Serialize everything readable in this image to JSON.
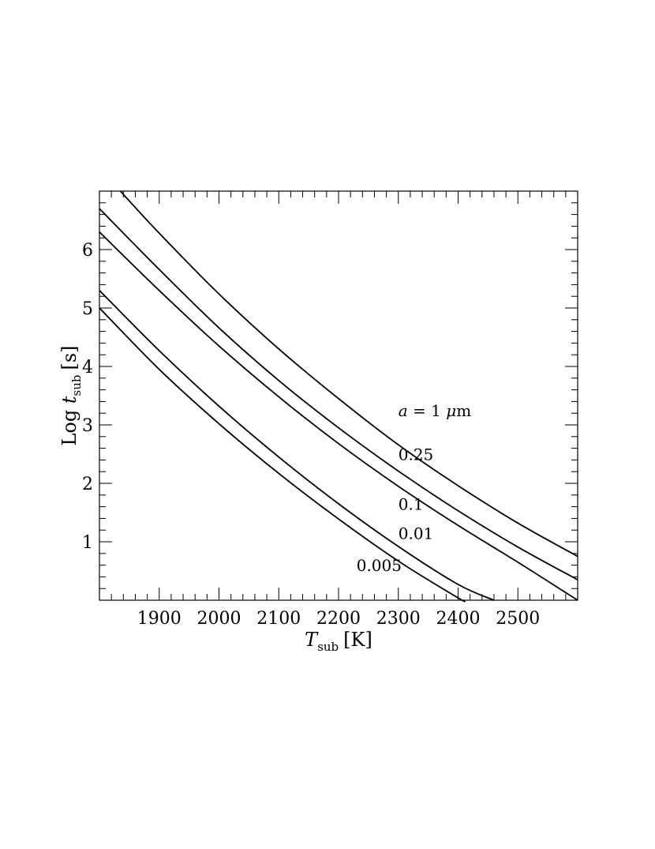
{
  "chart_data": {
    "type": "line",
    "xlabel": {
      "main": "T",
      "sub": "sub",
      "unit": "[K]"
    },
    "ylabel": {
      "prefix": "Log ",
      "main": "t",
      "sub": "sub",
      "unit": "[s]"
    },
    "xlim": [
      1800,
      2600
    ],
    "ylim": [
      0,
      7
    ],
    "x_ticks": [
      1900,
      2000,
      2100,
      2200,
      2300,
      2400,
      2500
    ],
    "y_ticks": [
      1,
      2,
      3,
      4,
      5,
      6
    ],
    "grid": false,
    "series": [
      {
        "name": "a = 1 μm",
        "label_parts": {
          "var": "a",
          "op": " = 1 ",
          "mu": "μ",
          "unit": "m"
        },
        "label_at": [
          2300,
          3.15
        ],
        "x": [
          1835,
          1900,
          2000,
          2100,
          2200,
          2300,
          2400,
          2500,
          2600
        ],
        "y": [
          7.0,
          6.28,
          5.24,
          4.3,
          3.45,
          2.66,
          1.96,
          1.32,
          0.75
        ]
      },
      {
        "name": "0.25",
        "label_at": [
          2300,
          2.4
        ],
        "x": [
          1800,
          1900,
          2000,
          2100,
          2200,
          2300,
          2400,
          2500,
          2600
        ],
        "y": [
          6.7,
          5.66,
          4.66,
          3.76,
          2.95,
          2.21,
          1.53,
          0.91,
          0.35
        ]
      },
      {
        "name": "0.1",
        "label_at": [
          2300,
          1.55
        ],
        "x": [
          1800,
          1900,
          2000,
          2100,
          2200,
          2300,
          2400,
          2500,
          2600
        ],
        "y": [
          6.3,
          5.3,
          4.35,
          3.48,
          2.68,
          1.95,
          1.28,
          0.65,
          0.0
        ]
      },
      {
        "name": "0.01",
        "label_at": [
          2300,
          1.05
        ],
        "x": [
          1800,
          1900,
          2000,
          2100,
          2200,
          2300,
          2400,
          2460
        ],
        "y": [
          5.3,
          4.27,
          3.32,
          2.45,
          1.65,
          0.92,
          0.27,
          0.0
        ]
      },
      {
        "name": "0.005",
        "label_at": [
          2230,
          0.5
        ],
        "x": [
          1800,
          1900,
          2000,
          2100,
          2200,
          2300,
          2400,
          2410
        ],
        "y": [
          5.0,
          3.95,
          3.02,
          2.17,
          1.39,
          0.67,
          0.04,
          0.0
        ]
      }
    ]
  }
}
